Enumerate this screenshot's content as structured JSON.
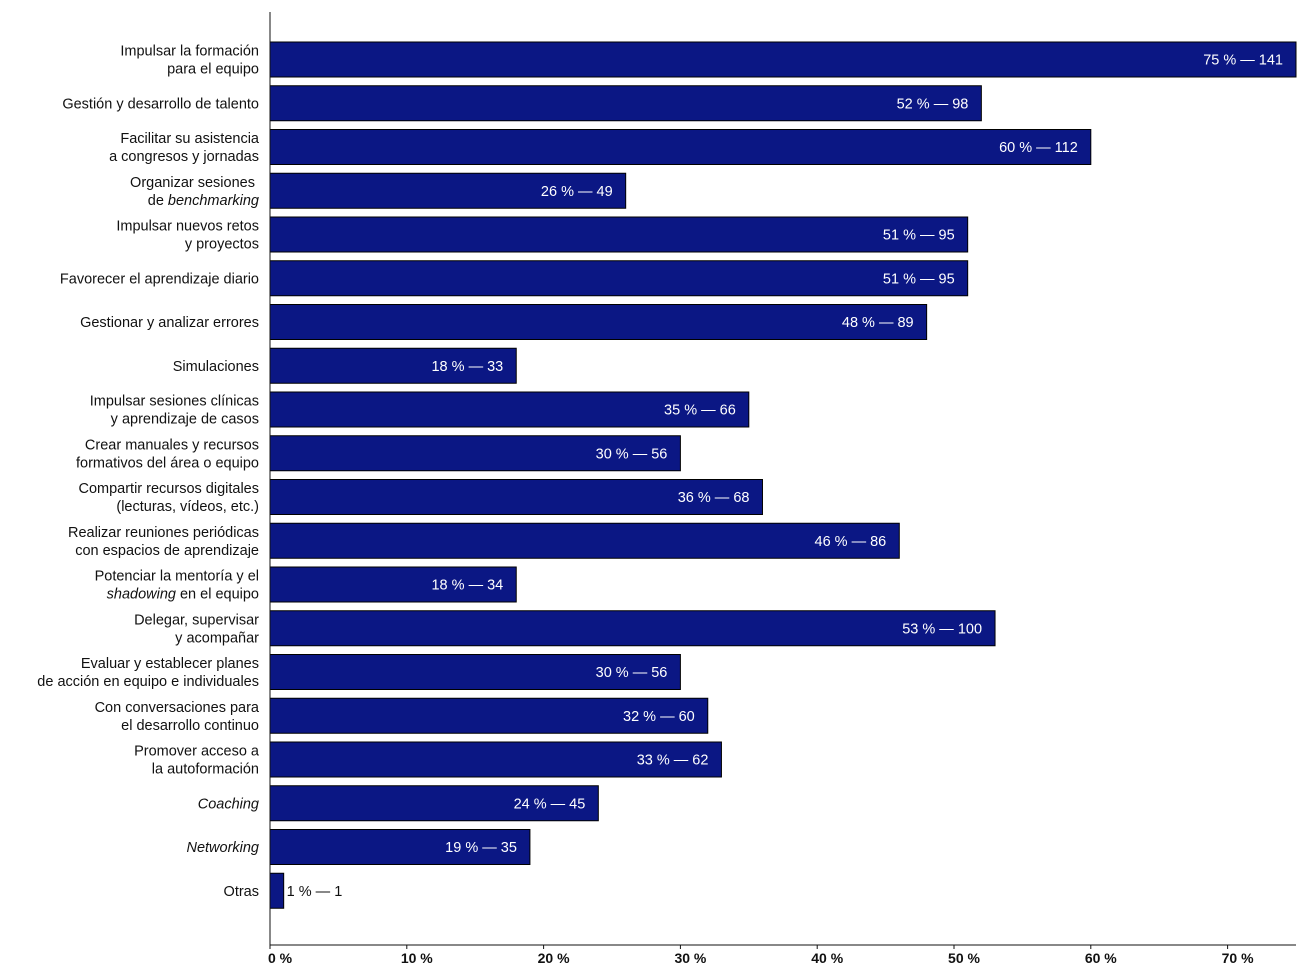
{
  "chart_data": {
    "type": "bar",
    "orientation": "horizontal",
    "title": "",
    "xlabel": "",
    "ylabel": "",
    "xlim": [
      0,
      75
    ],
    "grid": false,
    "legend": "none",
    "colors": {
      "bar_fill": "#0B1784",
      "bar_stroke": "#000000",
      "label_inside": "#ffffff",
      "label_outside": "#111111",
      "axis": "#111111"
    },
    "x_ticks": [
      {
        "value": 0,
        "label": "0 %"
      },
      {
        "value": 10,
        "label": "10 %"
      },
      {
        "value": 20,
        "label": "20 %"
      },
      {
        "value": 30,
        "label": "30 %"
      },
      {
        "value": 40,
        "label": "40 %"
      },
      {
        "value": 50,
        "label": "50 %"
      },
      {
        "value": 60,
        "label": "60 %"
      },
      {
        "value": 70,
        "label": "70 %"
      }
    ],
    "categories": [
      {
        "lines": [
          [
            {
              "t": "Impulsar la formación"
            }
          ],
          [
            {
              "t": "para el equipo"
            }
          ]
        ],
        "percent": 75,
        "count": 141,
        "value_label": "75 % — 141"
      },
      {
        "lines": [
          [
            {
              "t": "Gestión y desarrollo de talento"
            }
          ]
        ],
        "percent": 52,
        "count": 98,
        "value_label": "52 % — 98"
      },
      {
        "lines": [
          [
            {
              "t": "Facilitar su asistencia"
            }
          ],
          [
            {
              "t": "a congresos y jornadas"
            }
          ]
        ],
        "percent": 60,
        "count": 112,
        "value_label": "60 % — 112"
      },
      {
        "lines": [
          [
            {
              "t": "Organizar sesiones "
            }
          ],
          [
            {
              "t": "de "
            },
            {
              "t": "benchmarking",
              "i": true
            }
          ]
        ],
        "percent": 26,
        "count": 49,
        "value_label": "26 % — 49"
      },
      {
        "lines": [
          [
            {
              "t": "Impulsar nuevos retos"
            }
          ],
          [
            {
              "t": "y proyectos"
            }
          ]
        ],
        "percent": 51,
        "count": 95,
        "value_label": "51 % — 95"
      },
      {
        "lines": [
          [
            {
              "t": "Favorecer el aprendizaje diario"
            }
          ]
        ],
        "percent": 51,
        "count": 95,
        "value_label": "51 % — 95"
      },
      {
        "lines": [
          [
            {
              "t": "Gestionar y analizar errores"
            }
          ]
        ],
        "percent": 48,
        "count": 89,
        "value_label": "48 % — 89"
      },
      {
        "lines": [
          [
            {
              "t": "Simulaciones"
            }
          ]
        ],
        "percent": 18,
        "count": 33,
        "value_label": "18 % — 33"
      },
      {
        "lines": [
          [
            {
              "t": "Impulsar sesiones clínicas"
            }
          ],
          [
            {
              "t": "y aprendizaje de casos"
            }
          ]
        ],
        "percent": 35,
        "count": 66,
        "value_label": "35 % — 66"
      },
      {
        "lines": [
          [
            {
              "t": "Crear manuales y recursos"
            }
          ],
          [
            {
              "t": "formativos del área o equipo"
            }
          ]
        ],
        "percent": 30,
        "count": 56,
        "value_label": "30 % — 56"
      },
      {
        "lines": [
          [
            {
              "t": "Compartir recursos digitales"
            }
          ],
          [
            {
              "t": "(lecturas, vídeos, etc.)"
            }
          ]
        ],
        "percent": 36,
        "count": 68,
        "value_label": "36 % — 68"
      },
      {
        "lines": [
          [
            {
              "t": "Realizar reuniones periódicas"
            }
          ],
          [
            {
              "t": "con espacios de aprendizaje"
            }
          ]
        ],
        "percent": 46,
        "count": 86,
        "value_label": "46 % — 86"
      },
      {
        "lines": [
          [
            {
              "t": "Potenciar la mentoría y el"
            }
          ],
          [
            {
              "t": "shadowing",
              "i": true
            },
            {
              "t": " en el equipo"
            }
          ]
        ],
        "percent": 18,
        "count": 34,
        "value_label": "18 % — 34"
      },
      {
        "lines": [
          [
            {
              "t": "Delegar, supervisar"
            }
          ],
          [
            {
              "t": "y acompañar"
            }
          ]
        ],
        "percent": 53,
        "count": 100,
        "value_label": "53 % — 100"
      },
      {
        "lines": [
          [
            {
              "t": "Evaluar y establecer planes"
            }
          ],
          [
            {
              "t": "de acción en equipo e individuales"
            }
          ]
        ],
        "percent": 30,
        "count": 56,
        "value_label": "30 % — 56"
      },
      {
        "lines": [
          [
            {
              "t": "Con conversaciones para"
            }
          ],
          [
            {
              "t": "el desarrollo continuo"
            }
          ]
        ],
        "percent": 32,
        "count": 60,
        "value_label": "32 % — 60"
      },
      {
        "lines": [
          [
            {
              "t": "Promover acceso a"
            }
          ],
          [
            {
              "t": "la autoformación"
            }
          ]
        ],
        "percent": 33,
        "count": 62,
        "value_label": "33 % — 62"
      },
      {
        "lines": [
          [
            {
              "t": "Coaching",
              "i": true
            }
          ]
        ],
        "percent": 24,
        "count": 45,
        "value_label": "24 % — 45"
      },
      {
        "lines": [
          [
            {
              "t": "Networking",
              "i": true
            }
          ]
        ],
        "percent": 19,
        "count": 35,
        "value_label": "19 % — 35"
      },
      {
        "lines": [
          [
            {
              "t": "Otras"
            }
          ]
        ],
        "percent": 1,
        "count": 1,
        "value_label": "1 % — 1"
      }
    ]
  }
}
